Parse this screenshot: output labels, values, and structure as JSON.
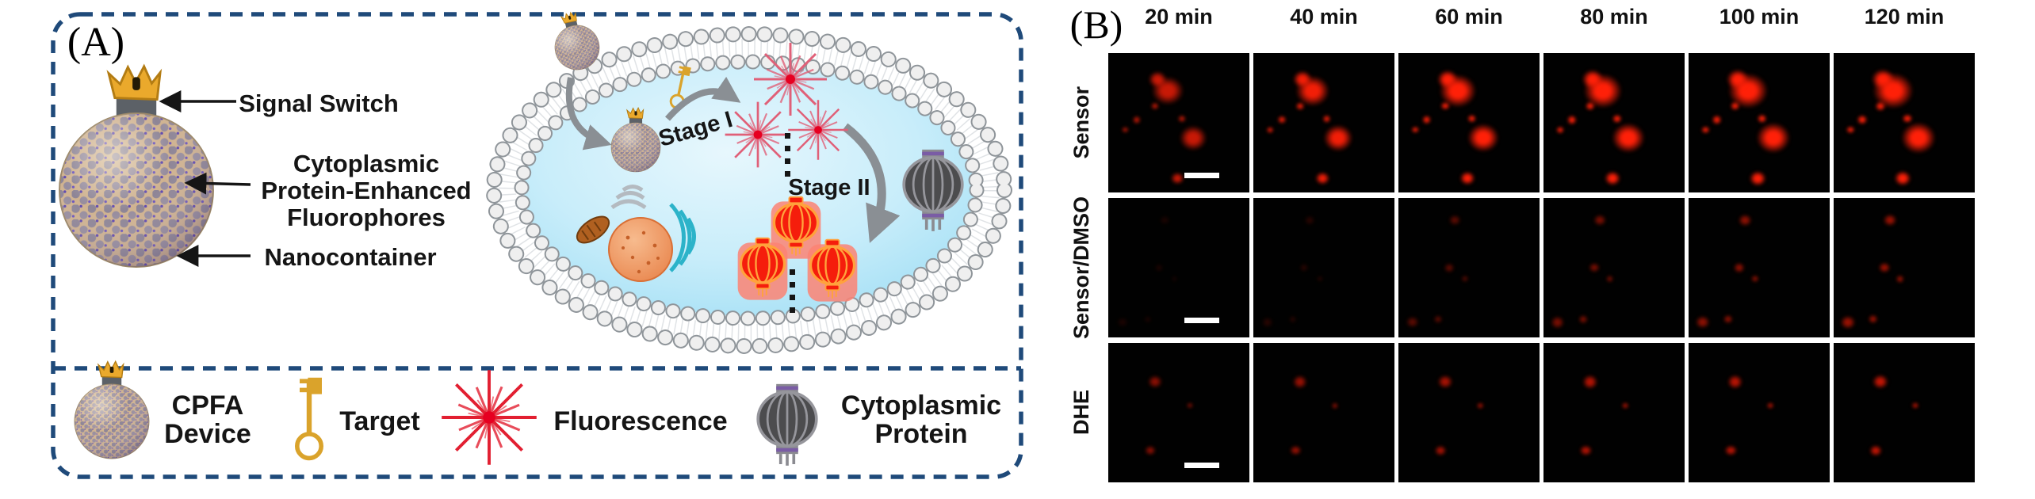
{
  "panel_a": {
    "label": "(A)",
    "annotations": {
      "signal_switch": "Signal Switch",
      "fluorophore_line1": "Cytoplasmic",
      "fluorophore_line2": "Protein-Enhanced",
      "fluorophore_line3": "Fluorophores",
      "nanocontainer": "Nanocontainer"
    },
    "stage_labels": {
      "stage1": "Stage I",
      "stage2": "Stage II"
    },
    "legend": {
      "item1_line1": "CPFA",
      "item1_line2": "Device",
      "item2": "Target",
      "item3": "Fluorescence",
      "item4_line1": "Cytoplasmic",
      "item4_line2": "Protein"
    }
  },
  "panel_b": {
    "label": "(B)",
    "columns": [
      "20 min",
      "40 min",
      "60 min",
      "80 min",
      "100 min",
      "120 min"
    ],
    "rows": [
      {
        "key": "sensor",
        "label": "Sensor",
        "blob_color": "#ff2008",
        "intensities": [
          0.5,
          0.62,
          0.78,
          0.88,
          0.95,
          1.05
        ],
        "blobs": [
          {
            "x": 42,
            "y": 27,
            "s": 20
          },
          {
            "x": 35,
            "y": 19,
            "s": 11
          },
          {
            "x": 60,
            "y": 61,
            "s": 17
          },
          {
            "x": 20,
            "y": 48,
            "s": 5
          },
          {
            "x": 33,
            "y": 38,
            "s": 5
          },
          {
            "x": 52,
            "y": 47,
            "s": 5
          },
          {
            "x": 49,
            "y": 90,
            "s": 8
          },
          {
            "x": 12,
            "y": 55,
            "s": 4
          }
        ]
      },
      {
        "key": "sensor-dmso",
        "label": "Sensor/DMSO",
        "blob_color": "#b51503",
        "intensities": [
          0.05,
          0.1,
          0.3,
          0.42,
          0.5,
          0.55
        ],
        "blobs": [
          {
            "x": 40,
            "y": 16,
            "s": 8
          },
          {
            "x": 36,
            "y": 50,
            "s": 7
          },
          {
            "x": 10,
            "y": 89,
            "s": 9
          },
          {
            "x": 28,
            "y": 87,
            "s": 6
          },
          {
            "x": 47,
            "y": 58,
            "s": 5
          }
        ]
      },
      {
        "key": "dhe",
        "label": "DHE",
        "blob_color": "#c21504",
        "intensities": [
          0.45,
          0.5,
          0.55,
          0.6,
          0.62,
          0.68
        ],
        "blobs": [
          {
            "x": 33,
            "y": 28,
            "s": 9
          },
          {
            "x": 30,
            "y": 77,
            "s": 7
          },
          {
            "x": 58,
            "y": 45,
            "s": 4
          }
        ]
      }
    ],
    "scale_bar": {
      "columns_with_bar": [
        0
      ],
      "color": "#ffffff"
    }
  },
  "colors": {
    "panel_border_blue": "#1f4a7a",
    "cytosol_blue": "#aee2f6",
    "membrane_bead_gray": "#ececec",
    "firework_pink": "#e06078",
    "firework_red": "#e21f31",
    "lantern_red": "#f51d0c",
    "lantern_gold_trim": "#ffa23c",
    "lantern_gray": "#4c4c4e",
    "lantern_purple_band": "#7a5ca5",
    "key_gold": "#daa32b",
    "arrow_gray": "#8a8f94",
    "micrograph_background": "#010101",
    "fluorescence_red": "#cc1404",
    "scale_bar_white": "#ffffff"
  }
}
